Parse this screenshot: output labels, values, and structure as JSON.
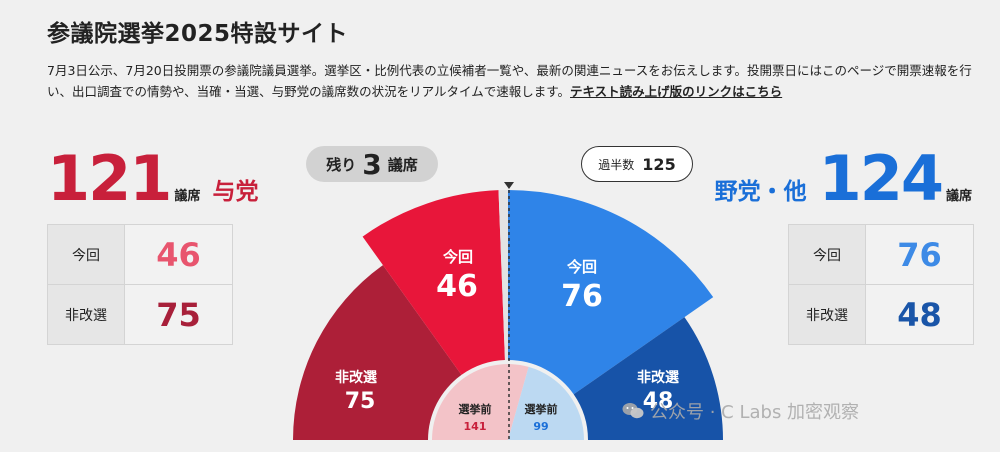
{
  "page": {
    "title": "参議院選挙2025特設サイト",
    "description": "7月3日公示、7月20日投開票の参議院議員選挙。選挙区・比例代表の立候補者一覧や、最新の関連ニュースをお伝えします。投開票日にはこのページで開票速報を行い、出口調査での情勢や、当確・当選、与野党の議席数の状況をリアルタイムで速報します。",
    "link_text": "テキスト読み上げ版のリンクはこちら"
  },
  "ruling": {
    "total": "121",
    "unit": "議席",
    "name": "与党",
    "this_label": "今回",
    "this_value": "46",
    "non_label": "非改選",
    "non_value": "75",
    "before_label": "選挙前",
    "before_value": "141"
  },
  "opposition": {
    "total": "124",
    "unit": "議席",
    "name": "野党・他",
    "this_label": "今回",
    "this_value": "76",
    "non_label": "非改選",
    "non_value": "48",
    "before_label": "選挙前",
    "before_value": "99"
  },
  "remaining": {
    "prefix": "残り",
    "value": "3",
    "suffix": "議席"
  },
  "majority": {
    "label": "過半数",
    "value": "125"
  },
  "watermark": {
    "text": "公众号 · C Labs 加密观察"
  },
  "colors": {
    "ruling_this": "#e8163a",
    "ruling_non": "#ad1f38",
    "ruling_before": "#f3c3c8",
    "opp_this": "#2f84e8",
    "opp_non": "#1753a8",
    "opp_before": "#bcd9f2"
  },
  "chart_data": {
    "type": "pie",
    "title": "",
    "total_seats": 248,
    "series": [
      {
        "name": "与党 非改選",
        "value": 75
      },
      {
        "name": "与党 今回",
        "value": 46
      },
      {
        "name": "野党・他 今回",
        "value": 76
      },
      {
        "name": "野党・他 非改選",
        "value": 48
      },
      {
        "name": "残り",
        "value": 3
      }
    ],
    "inner": [
      {
        "name": "選挙前 与党",
        "value": 141
      },
      {
        "name": "選挙前 野党・他",
        "value": 99
      }
    ]
  }
}
